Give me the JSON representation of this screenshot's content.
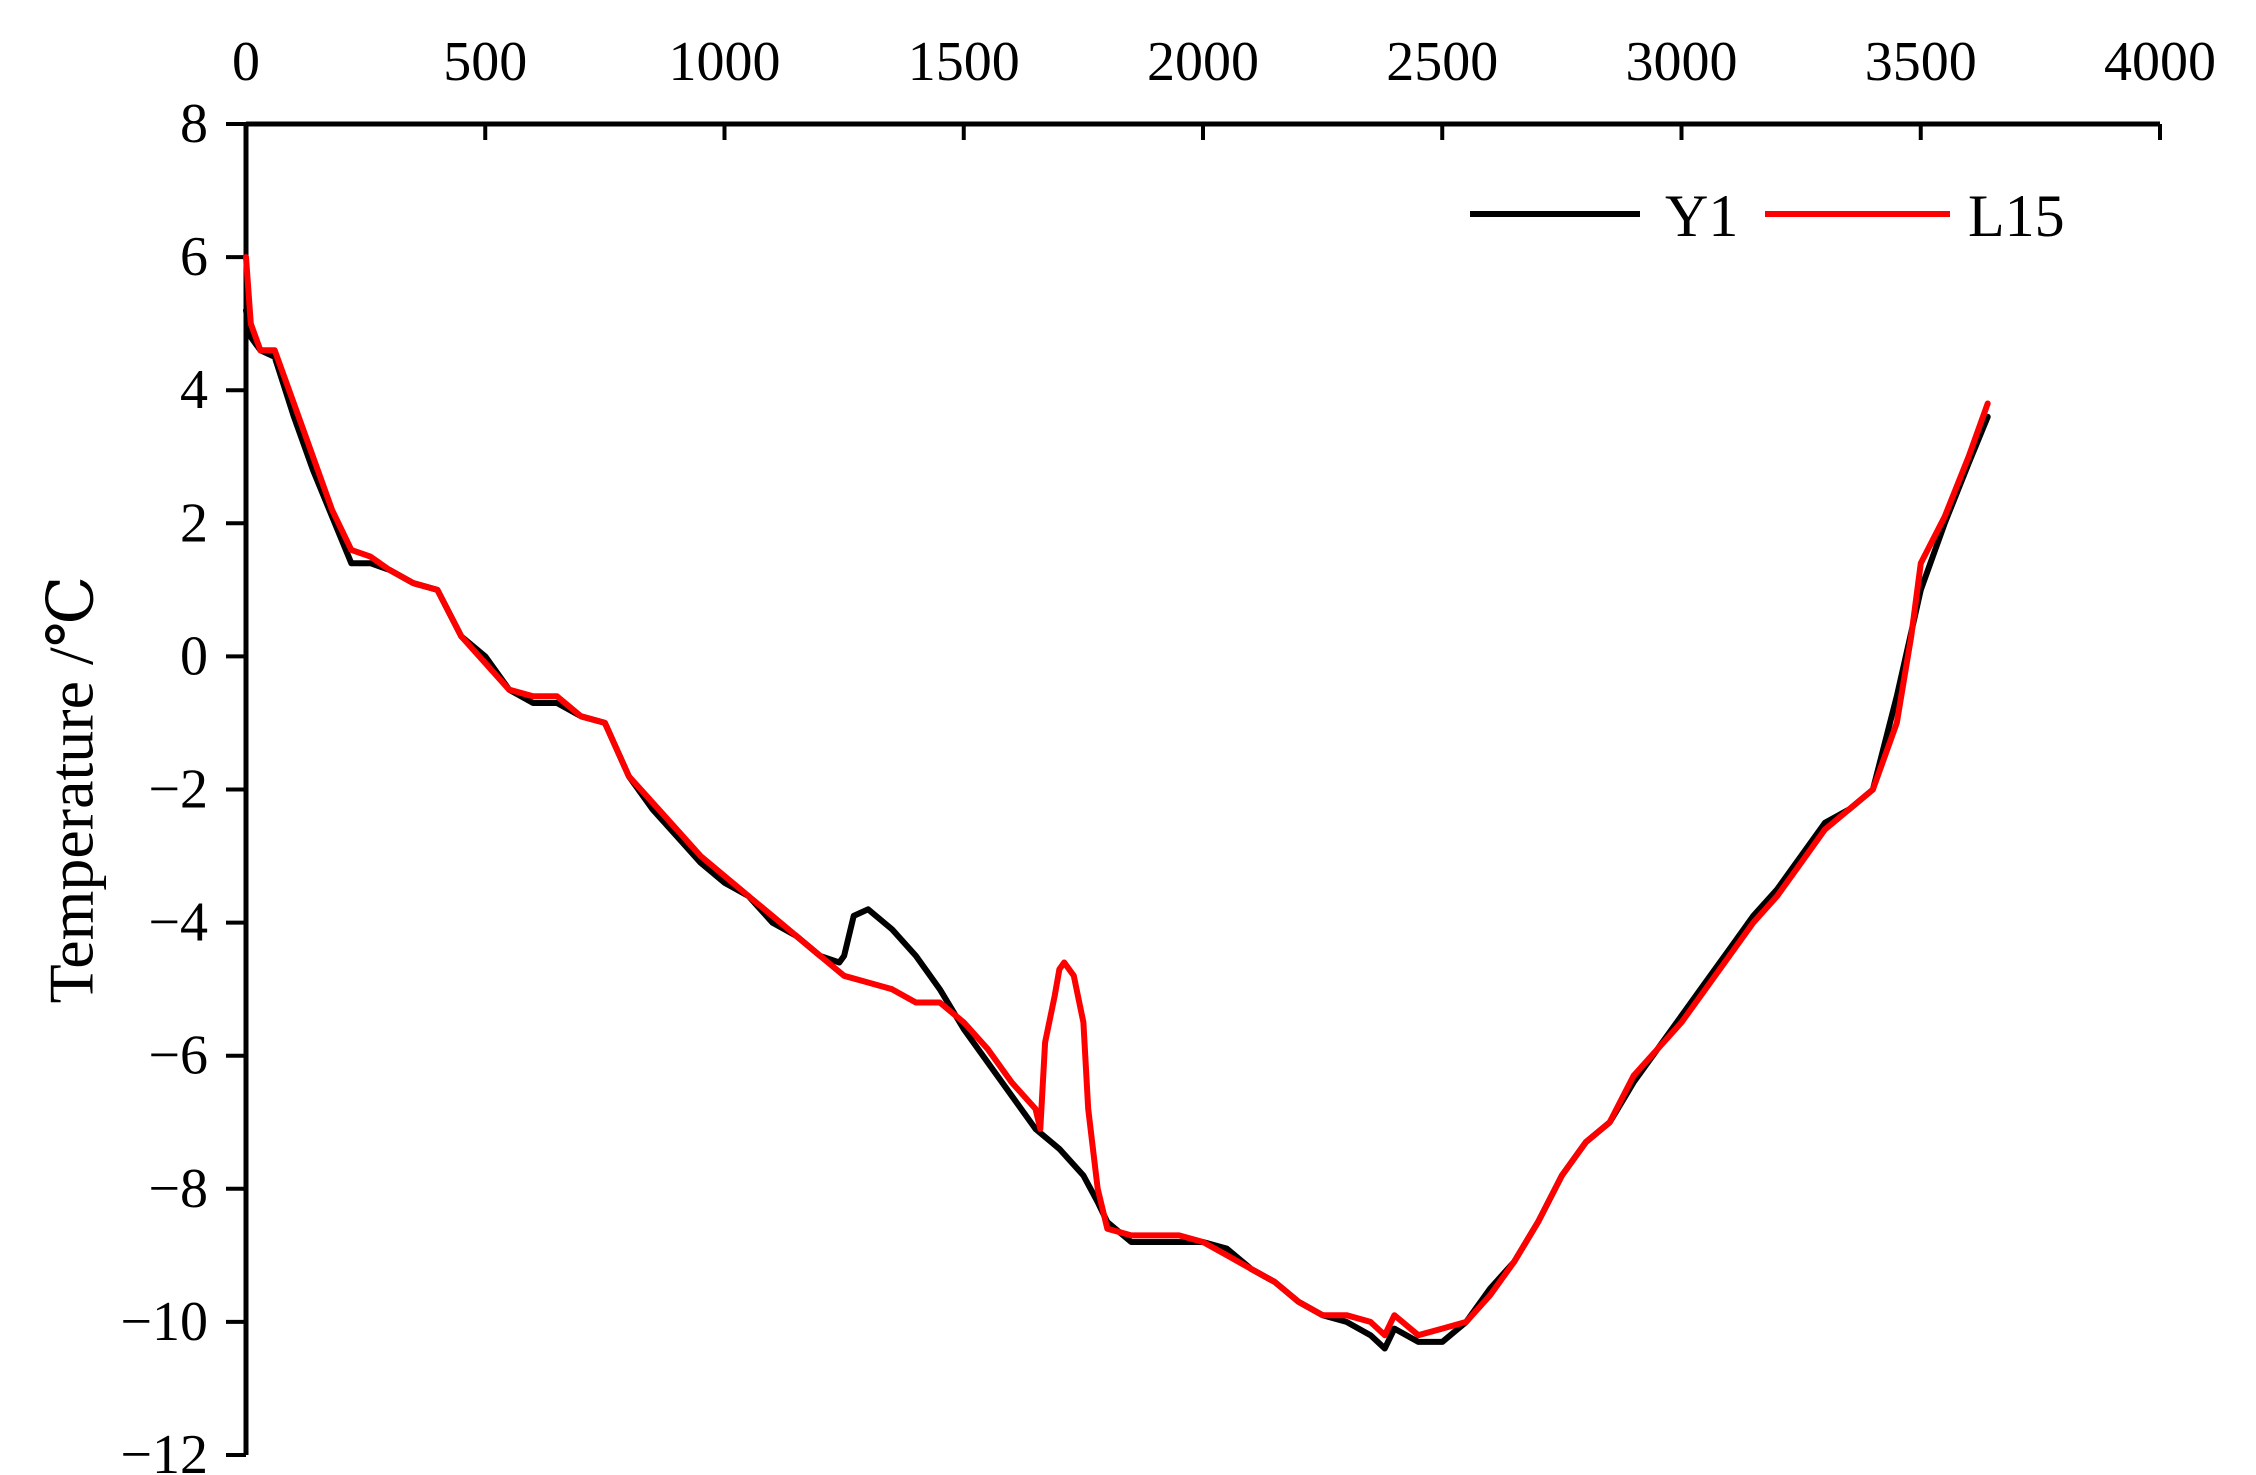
{
  "chart_data": {
    "type": "line",
    "title": "",
    "xlabel": "",
    "ylabel": "Temperature /℃",
    "xlim": [
      0,
      4000
    ],
    "ylim": [
      -12,
      8
    ],
    "x_axis_position": "top",
    "xticks": [
      0,
      500,
      1000,
      1500,
      2000,
      2500,
      3000,
      3500,
      4000
    ],
    "yticks": [
      8,
      6,
      4,
      2,
      0,
      -2,
      -4,
      -6,
      -8,
      -10,
      -12
    ],
    "xtick_labels": [
      "0",
      "500",
      "1000",
      "1500",
      "2000",
      "2500",
      "3000",
      "3500",
      "4000"
    ],
    "ytick_labels": [
      "8",
      "6",
      "4",
      "2",
      "0",
      "−2",
      "−4",
      "−6",
      "−8",
      "−10",
      "−12"
    ],
    "grid": false,
    "legend_position": "top-right",
    "series": [
      {
        "name": "Y1",
        "color": "#000000",
        "x": [
          0,
          10,
          30,
          60,
          100,
          140,
          180,
          220,
          260,
          300,
          350,
          400,
          450,
          500,
          550,
          600,
          650,
          700,
          750,
          800,
          850,
          900,
          950,
          1000,
          1050,
          1100,
          1150,
          1200,
          1240,
          1250,
          1270,
          1300,
          1350,
          1400,
          1450,
          1500,
          1550,
          1600,
          1650,
          1700,
          1750,
          1780,
          1800,
          1850,
          1900,
          1950,
          2000,
          2050,
          2100,
          2150,
          2200,
          2250,
          2300,
          2350,
          2380,
          2400,
          2450,
          2500,
          2550,
          2600,
          2650,
          2700,
          2750,
          2800,
          2850,
          2900,
          2950,
          3000,
          3050,
          3100,
          3150,
          3200,
          3250,
          3300,
          3350,
          3400,
          3450,
          3500,
          3550,
          3600,
          3640
        ],
        "y": [
          5.2,
          4.8,
          4.6,
          4.5,
          3.6,
          2.8,
          2.1,
          1.4,
          1.4,
          1.3,
          1.1,
          1.0,
          0.3,
          0.0,
          -0.5,
          -0.7,
          -0.7,
          -0.9,
          -1.0,
          -1.8,
          -2.3,
          -2.7,
          -3.1,
          -3.4,
          -3.6,
          -4.0,
          -4.2,
          -4.5,
          -4.6,
          -4.5,
          -3.9,
          -3.8,
          -4.1,
          -4.5,
          -5.0,
          -5.6,
          -6.1,
          -6.6,
          -7.1,
          -7.4,
          -7.8,
          -8.2,
          -8.5,
          -8.8,
          -8.8,
          -8.8,
          -8.8,
          -8.9,
          -9.2,
          -9.4,
          -9.7,
          -9.9,
          -10.0,
          -10.2,
          -10.4,
          -10.1,
          -10.3,
          -10.3,
          -10.0,
          -9.5,
          -9.1,
          -8.5,
          -7.8,
          -7.3,
          -7.0,
          -6.4,
          -5.9,
          -5.4,
          -4.9,
          -4.4,
          -3.9,
          -3.5,
          -3.0,
          -2.5,
          -2.3,
          -2.0,
          -0.6,
          1.0,
          2.0,
          2.9,
          3.6
        ]
      },
      {
        "name": "L15",
        "color": "#ff0000",
        "x": [
          0,
          10,
          30,
          60,
          100,
          140,
          180,
          220,
          260,
          300,
          350,
          400,
          450,
          500,
          550,
          600,
          650,
          700,
          750,
          800,
          850,
          900,
          950,
          1000,
          1050,
          1100,
          1150,
          1200,
          1250,
          1300,
          1350,
          1400,
          1450,
          1500,
          1550,
          1600,
          1650,
          1660,
          1670,
          1690,
          1700,
          1710,
          1730,
          1750,
          1760,
          1780,
          1800,
          1850,
          1900,
          1950,
          2000,
          2050,
          2100,
          2150,
          2200,
          2250,
          2300,
          2350,
          2380,
          2400,
          2450,
          2500,
          2550,
          2600,
          2650,
          2700,
          2750,
          2800,
          2850,
          2900,
          2950,
          3000,
          3050,
          3100,
          3150,
          3200,
          3250,
          3300,
          3350,
          3400,
          3450,
          3480,
          3500,
          3550,
          3600,
          3640
        ],
        "y": [
          6.0,
          5.0,
          4.6,
          4.6,
          3.8,
          3.0,
          2.2,
          1.6,
          1.5,
          1.3,
          1.1,
          1.0,
          0.3,
          -0.1,
          -0.5,
          -0.6,
          -0.6,
          -0.9,
          -1.0,
          -1.8,
          -2.2,
          -2.6,
          -3.0,
          -3.3,
          -3.6,
          -3.9,
          -4.2,
          -4.5,
          -4.8,
          -4.9,
          -5.0,
          -5.2,
          -5.2,
          -5.5,
          -5.9,
          -6.4,
          -6.8,
          -7.1,
          -5.8,
          -5.1,
          -4.7,
          -4.6,
          -4.8,
          -5.5,
          -6.8,
          -8.0,
          -8.6,
          -8.7,
          -8.7,
          -8.7,
          -8.8,
          -9.0,
          -9.2,
          -9.4,
          -9.7,
          -9.9,
          -9.9,
          -10.0,
          -10.2,
          -9.9,
          -10.2,
          -10.1,
          -10.0,
          -9.6,
          -9.1,
          -8.5,
          -7.8,
          -7.3,
          -7.0,
          -6.3,
          -5.9,
          -5.5,
          -5.0,
          -4.5,
          -4.0,
          -3.6,
          -3.1,
          -2.6,
          -2.3,
          -2.0,
          -1.0,
          0.3,
          1.4,
          2.1,
          3.0,
          3.8
        ]
      }
    ]
  }
}
